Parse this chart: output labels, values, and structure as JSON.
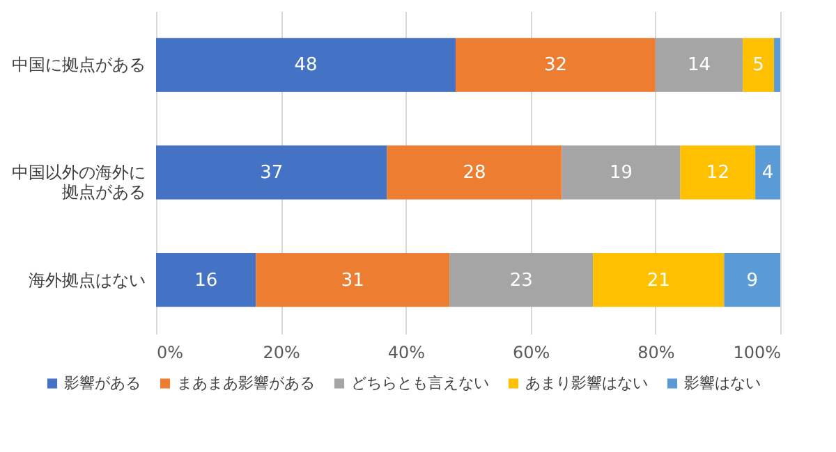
{
  "chart_data": {
    "type": "bar",
    "orientation": "horizontal",
    "stacked": true,
    "categories": [
      "中国に拠点がある",
      "中国以外の海外に拠点がある",
      "海外拠点はない"
    ],
    "series": [
      {
        "name": "影響がある",
        "color": "#4472c4",
        "values": [
          48,
          37,
          16
        ],
        "value_labels": [
          "48",
          "37",
          "16"
        ]
      },
      {
        "name": "まあまあ影響がある",
        "color": "#ed7d31",
        "values": [
          32,
          28,
          31
        ],
        "value_labels": [
          "32",
          "28",
          "31"
        ]
      },
      {
        "name": "どちらとも言えない",
        "color": "#a5a5a5",
        "values": [
          14,
          19,
          23
        ],
        "value_labels": [
          "14",
          "19",
          "23"
        ]
      },
      {
        "name": "あまり影響はない",
        "color": "#ffc000",
        "values": [
          5,
          12,
          21
        ],
        "value_labels": [
          "5",
          "12",
          "21"
        ]
      },
      {
        "name": "影響はない",
        "color": "#5b9bd5",
        "values": [
          1,
          4,
          9
        ],
        "value_labels": [
          null,
          "4",
          "9"
        ]
      }
    ],
    "xlim": [
      0,
      100
    ],
    "xticks": [
      {
        "value": 0,
        "label": "0%"
      },
      {
        "value": 20,
        "label": "20%"
      },
      {
        "value": 40,
        "label": "40%"
      },
      {
        "value": 60,
        "label": "60%"
      },
      {
        "value": 80,
        "label": "80%"
      },
      {
        "value": 100,
        "label": "100%"
      }
    ],
    "grid": "x",
    "legend": "bottom"
  }
}
